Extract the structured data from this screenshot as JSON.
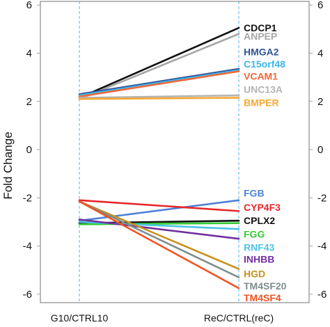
{
  "chart_data": {
    "type": "line",
    "title": "",
    "xlabel": "",
    "ylabel": "Fold Change",
    "categories": [
      "G10/CTRL10",
      "ReC/CTRL(reC)"
    ],
    "ylim": [
      -6.35,
      6.15
    ],
    "yticks": [
      6,
      4,
      2,
      0,
      -2,
      -4,
      -6
    ],
    "ytick_labels": [
      "6",
      "4",
      "2",
      "0",
      "-2",
      "-4",
      "-6"
    ],
    "grid": false,
    "series": [
      {
        "name": "CDCP1",
        "color": "#111111",
        "values": [
          2.15,
          5.05
        ]
      },
      {
        "name": "ANPEP",
        "color": "#a6a6a6",
        "values": [
          2.1,
          4.8
        ]
      },
      {
        "name": "HMGA2",
        "color": "#2f5597",
        "values": [
          2.3,
          3.35
        ]
      },
      {
        "name": "C15orf48",
        "color": "#3db7e9",
        "values": [
          2.25,
          3.3
        ]
      },
      {
        "name": "VCAM1",
        "color": "#f4673a",
        "values": [
          2.2,
          3.25
        ]
      },
      {
        "name": "UNC13A",
        "color": "#b4b4b4",
        "values": [
          2.15,
          2.25
        ]
      },
      {
        "name": "BMPER",
        "color": "#f5a834",
        "values": [
          2.1,
          2.15
        ]
      },
      {
        "name": "FGB",
        "color": "#4f81d6",
        "values": [
          -2.95,
          -2.1
        ]
      },
      {
        "name": "CYP4F3",
        "color": "#e8262a",
        "values": [
          -2.1,
          -2.55
        ]
      },
      {
        "name": "CPLX2",
        "color": "#111111",
        "values": [
          -3.05,
          -2.95
        ]
      },
      {
        "name": "FGG",
        "color": "#33cc33",
        "values": [
          -3.1,
          -3.05
        ]
      },
      {
        "name": "RNF43",
        "color": "#4dc4e6",
        "values": [
          -3.0,
          -3.3
        ]
      },
      {
        "name": "INHBB",
        "color": "#7030a0",
        "values": [
          -2.9,
          -3.7
        ]
      },
      {
        "name": "HGD",
        "color": "#c8911c",
        "values": [
          -2.15,
          -4.95
        ]
      },
      {
        "name": "TM4SF20",
        "color": "#7f8c8d",
        "values": [
          -2.15,
          -5.3
        ]
      },
      {
        "name": "TM4SF4",
        "color": "#f05322",
        "values": [
          -2.15,
          -5.75
        ]
      }
    ],
    "label_positions": [
      5.05,
      4.7,
      4.05,
      3.55,
      3.05,
      2.5,
      1.95,
      -1.8,
      -2.4,
      -2.95,
      -3.5,
      -4.05,
      -4.55,
      -5.15,
      -5.65,
      -6.15
    ]
  }
}
